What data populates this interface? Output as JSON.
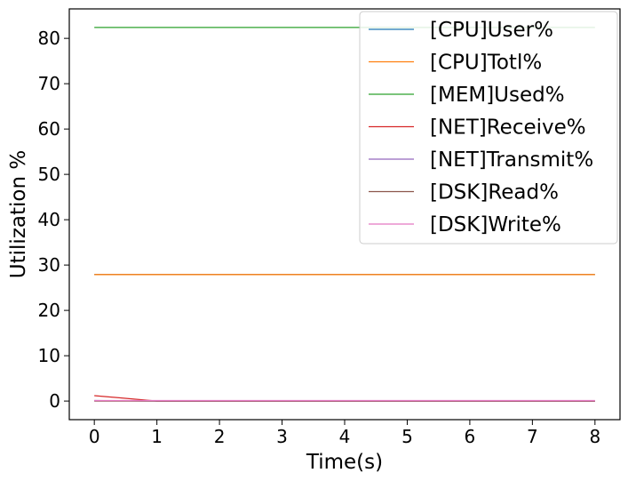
{
  "chart_data": {
    "type": "line",
    "xlabel": "Time(s)",
    "ylabel": "Utilization %",
    "x": [
      0,
      1,
      2,
      3,
      4,
      5,
      6,
      7,
      8
    ],
    "xlim": [
      -0.4,
      8.4
    ],
    "ylim": [
      -4.1,
      86.5
    ],
    "xticks": [
      0,
      1,
      2,
      3,
      4,
      5,
      6,
      7,
      8
    ],
    "yticks": [
      0,
      10,
      20,
      30,
      40,
      50,
      60,
      70,
      80
    ],
    "grid": false,
    "legend_position": "top-right",
    "series": [
      {
        "name": "[CPU]User%",
        "color": "#1f77b4",
        "values": [
          27.9,
          27.9,
          27.9,
          27.9,
          27.9,
          27.9,
          27.9,
          27.9,
          27.9
        ]
      },
      {
        "name": "[CPU]Totl%",
        "color": "#ff7f0e",
        "values": [
          27.9,
          27.9,
          27.9,
          27.9,
          27.9,
          27.9,
          27.9,
          27.9,
          27.9
        ]
      },
      {
        "name": "[MEM]Used%",
        "color": "#2ca02c",
        "values": [
          82.4,
          82.4,
          82.4,
          82.4,
          82.4,
          82.4,
          82.4,
          82.4,
          82.4
        ]
      },
      {
        "name": "[NET]Receive%",
        "color": "#d62728",
        "values": [
          1.2,
          0,
          0,
          0,
          0,
          0,
          0,
          0,
          0
        ]
      },
      {
        "name": "[NET]Transmit%",
        "color": "#9467bd",
        "values": [
          0.1,
          0,
          0,
          0,
          0,
          0,
          0,
          0,
          0
        ]
      },
      {
        "name": "[DSK]Read%",
        "color": "#8c564b",
        "values": [
          0,
          0,
          0,
          0,
          0,
          0,
          0,
          0,
          0
        ]
      },
      {
        "name": "[DSK]Write%",
        "color": "#e377c2",
        "values": [
          0.1,
          0.1,
          0.1,
          0.1,
          0.1,
          0.1,
          0.1,
          0.1,
          0.1
        ]
      }
    ]
  }
}
